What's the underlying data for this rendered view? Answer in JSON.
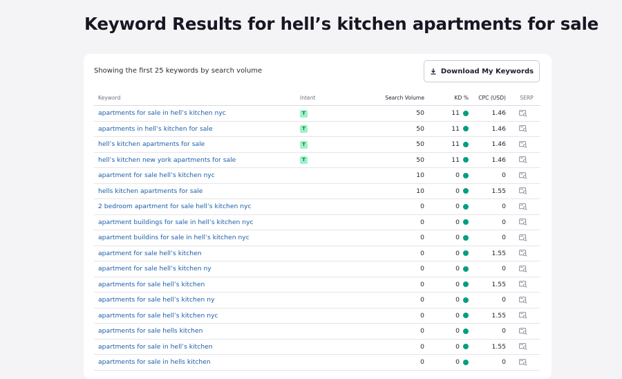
{
  "page": {
    "title": "Keyword Results for hell’s kitchen apartments for sale"
  },
  "card": {
    "subtitle": "Showing the first 25 keywords by search volume",
    "download_label": "Download My Keywords"
  },
  "table": {
    "headers": {
      "keyword": "Keyword",
      "intent": "Intent",
      "volume": "Search Volume",
      "kd": "KD %",
      "cpc": "CPC (USD)",
      "serp": "SERP"
    },
    "kd_dot_color": "#009f81",
    "rows": [
      {
        "keyword": "apartments for sale in hell’s kitchen nyc",
        "intent": "T",
        "volume": "50",
        "kd": "11",
        "cpc": "1.46"
      },
      {
        "keyword": "apartments in hell’s kitchen for sale",
        "intent": "T",
        "volume": "50",
        "kd": "11",
        "cpc": "1.46"
      },
      {
        "keyword": "hell’s kitchen apartments for sale",
        "intent": "T",
        "volume": "50",
        "kd": "11",
        "cpc": "1.46"
      },
      {
        "keyword": "hell’s kitchen new york apartments for sale",
        "intent": "T",
        "volume": "50",
        "kd": "11",
        "cpc": "1.46"
      },
      {
        "keyword": "apartment for sale hell’s kitchen nyc",
        "intent": "",
        "volume": "10",
        "kd": "0",
        "cpc": "0"
      },
      {
        "keyword": "hells kitchen apartments for sale",
        "intent": "",
        "volume": "10",
        "kd": "0",
        "cpc": "1.55"
      },
      {
        "keyword": "2 bedroom apartment for sale hell’s kitchen nyc",
        "intent": "",
        "volume": "0",
        "kd": "0",
        "cpc": "0"
      },
      {
        "keyword": "apartment buildings for sale in hell’s kitchen nyc",
        "intent": "",
        "volume": "0",
        "kd": "0",
        "cpc": "0"
      },
      {
        "keyword": "apartment buildins for sale in hell’s kitchen nyc",
        "intent": "",
        "volume": "0",
        "kd": "0",
        "cpc": "0"
      },
      {
        "keyword": "apartment for sale hell’s kitchen",
        "intent": "",
        "volume": "0",
        "kd": "0",
        "cpc": "1.55"
      },
      {
        "keyword": "apartment for sale hell’s kitchen ny",
        "intent": "",
        "volume": "0",
        "kd": "0",
        "cpc": "0"
      },
      {
        "keyword": "apartments for sale hell’s kitchen",
        "intent": "",
        "volume": "0",
        "kd": "0",
        "cpc": "1.55"
      },
      {
        "keyword": "apartments for sale hell’s kitchen ny",
        "intent": "",
        "volume": "0",
        "kd": "0",
        "cpc": "0"
      },
      {
        "keyword": "apartments for sale hell’s kitchen nyc",
        "intent": "",
        "volume": "0",
        "kd": "0",
        "cpc": "1.55"
      },
      {
        "keyword": "apartments for sale hells kitchen",
        "intent": "",
        "volume": "0",
        "kd": "0",
        "cpc": "0"
      },
      {
        "keyword": "apartments for sale in hell’s kitchen",
        "intent": "",
        "volume": "0",
        "kd": "0",
        "cpc": "1.55"
      },
      {
        "keyword": "apartments for sale in hells kitchen",
        "intent": "",
        "volume": "0",
        "kd": "0",
        "cpc": "0"
      }
    ]
  }
}
